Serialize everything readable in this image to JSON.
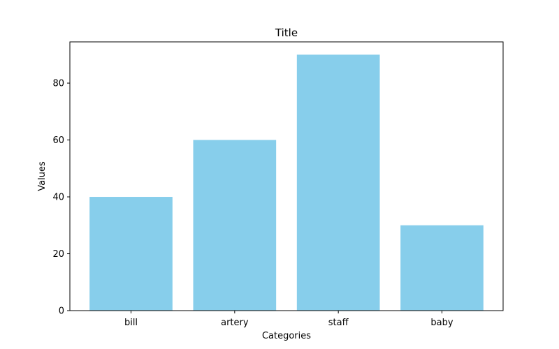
{
  "chart_data": {
    "type": "bar",
    "title": "Title",
    "xlabel": "Categories",
    "ylabel": "Values",
    "categories": [
      "bill",
      "artery",
      "staff",
      "baby"
    ],
    "values": [
      40,
      60,
      90,
      30
    ],
    "ylim": [
      0,
      94.5
    ],
    "yticks": [
      0,
      20,
      40,
      60,
      80
    ],
    "bar_color": "#87ceeb",
    "grid": false,
    "legend": "none"
  }
}
